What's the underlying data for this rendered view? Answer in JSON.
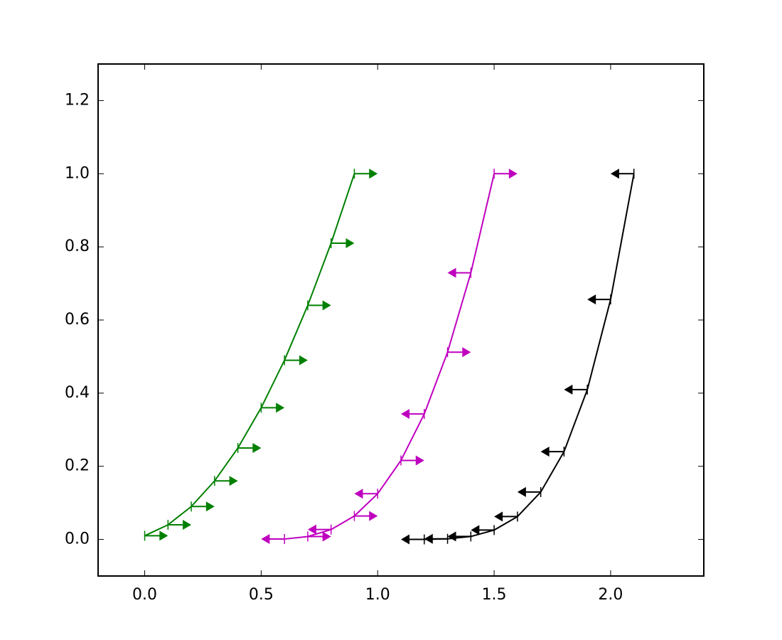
{
  "chart_data": {
    "type": "errorbar",
    "xlim": [
      -0.2,
      2.4
    ],
    "ylim": [
      -0.1,
      1.3
    ],
    "xticks": [
      {
        "value": 0,
        "label": "0.0"
      },
      {
        "value": 0.5,
        "label": "0.5"
      },
      {
        "value": 1,
        "label": "1.0"
      },
      {
        "value": 1.5,
        "label": "1.5"
      },
      {
        "value": 2,
        "label": "2.0"
      }
    ],
    "yticks": [
      {
        "value": 0,
        "label": "0.0"
      },
      {
        "value": 0.2,
        "label": "0.2"
      },
      {
        "value": 0.4,
        "label": "0.4"
      },
      {
        "value": 0.6,
        "label": "0.6"
      },
      {
        "value": 0.8,
        "label": "0.8"
      },
      {
        "value": 1,
        "label": "1.0"
      },
      {
        "value": 1.2,
        "label": "1.2"
      }
    ],
    "series": [
      {
        "color": "#008000",
        "xerr": 0.1,
        "x": [
          0,
          0.1,
          0.2,
          0.3,
          0.4,
          0.5,
          0.6,
          0.7,
          0.8,
          0.9
        ],
        "values": [
          0.01,
          0.04,
          0.09,
          0.16,
          0.25,
          0.36,
          0.49,
          0.64,
          0.81,
          1.0
        ],
        "xlolims": [
          true,
          true,
          true,
          true,
          true,
          true,
          true,
          true,
          true,
          true
        ]
      },
      {
        "color": "#bf00bf",
        "xerr": 0.1,
        "x": [
          0.6,
          0.7,
          0.8,
          0.9,
          1.0,
          1.1,
          1.2,
          1.3,
          1.4,
          1.5
        ],
        "values": [
          0.001,
          0.008,
          0.027,
          0.064,
          0.125,
          0.216,
          0.343,
          0.512,
          0.729,
          1.0
        ],
        "xlolims": [
          false,
          true,
          false,
          true,
          false,
          true,
          false,
          true,
          false,
          true
        ]
      },
      {
        "color": "#000000",
        "xerr": 0.1,
        "x": [
          1.2,
          1.3,
          1.4,
          1.5,
          1.6,
          1.7,
          1.8,
          1.9,
          2.0,
          2.1
        ],
        "values": [
          0.0001,
          0.0016,
          0.0081,
          0.0256,
          0.0625,
          0.1296,
          0.2401,
          0.4096,
          0.6561,
          1.0
        ],
        "xlolims": [
          false,
          false,
          false,
          false,
          false,
          false,
          false,
          false,
          false,
          false
        ]
      }
    ]
  }
}
